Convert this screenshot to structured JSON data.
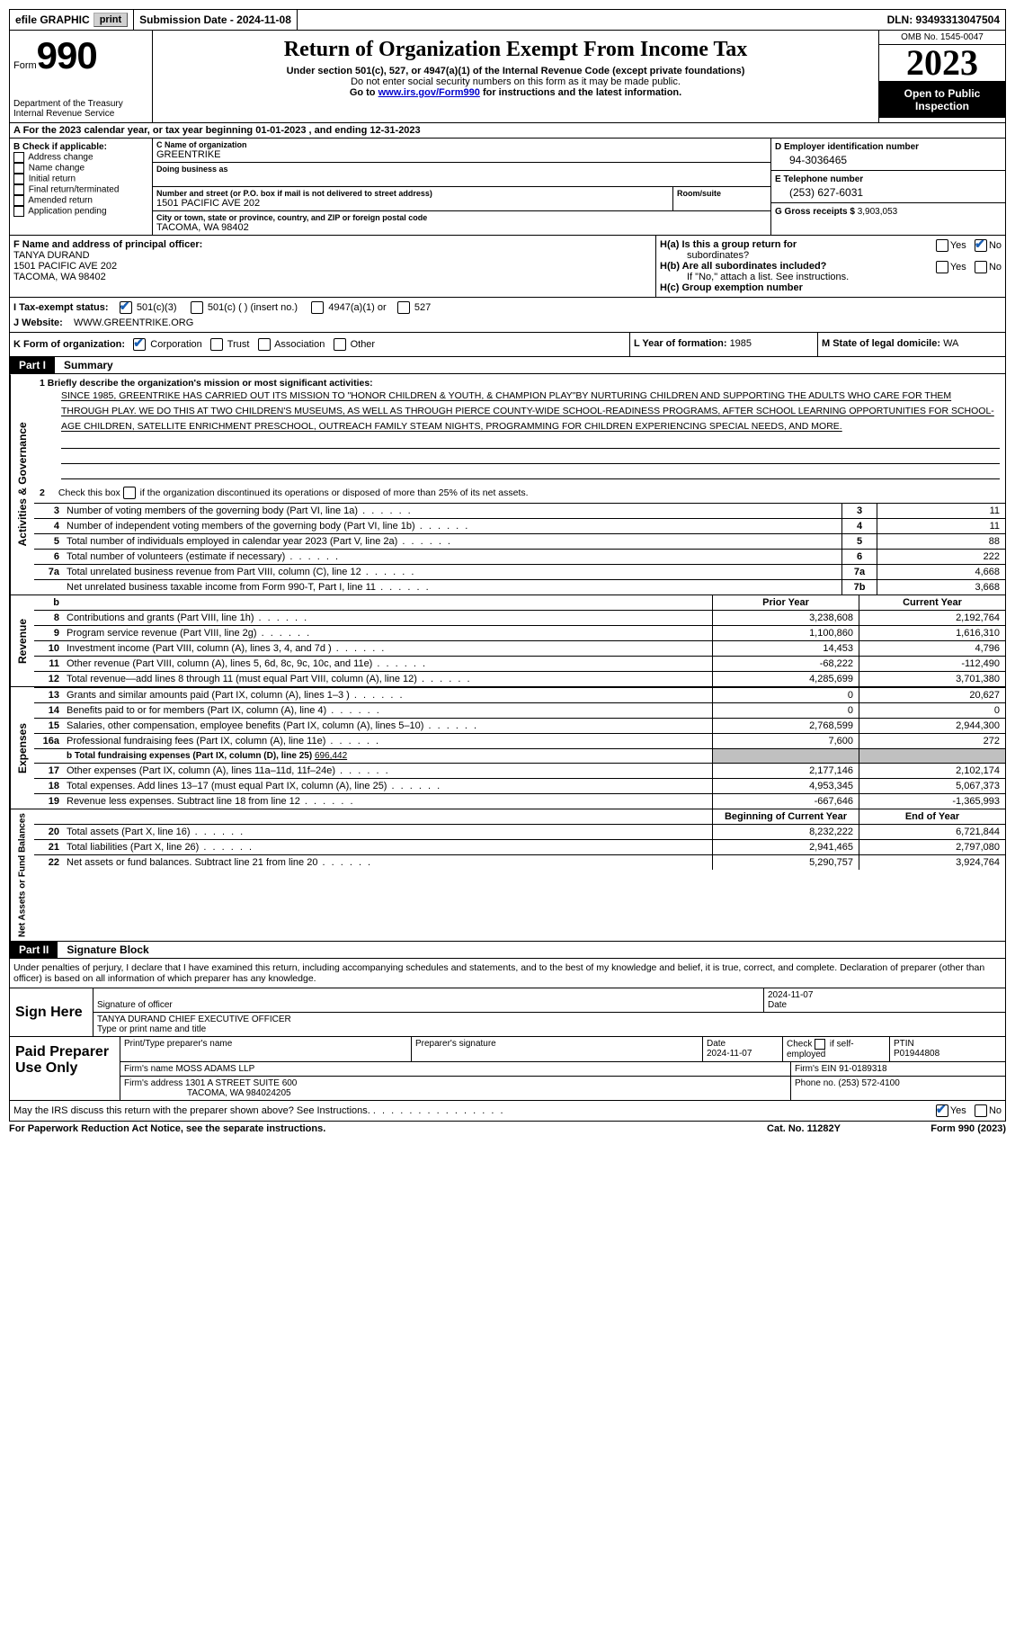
{
  "colors": {
    "background": "#ffffff",
    "text": "#000000",
    "header_black": "#000000",
    "check_blue": "#1a5fb4",
    "shaded_gray": "#c0c0c0",
    "button_gray": "#d0d0d0",
    "link_blue": "#0000cc"
  },
  "typography": {
    "base_family": "Arial, Helvetica, sans-serif",
    "serif_family": "Georgia, Times New Roman, serif",
    "base_size_pt": 9,
    "title_size_pt": 18,
    "year_size_pt": 30
  },
  "top_bar": {
    "efile_label": "efile GRAPHIC",
    "print_button": "print",
    "submission_label": "Submission Date - 2024-11-08",
    "dln_label": "DLN: 93493313047504"
  },
  "header": {
    "form_label": "Form",
    "form_number": "990",
    "dept1": "Department of the Treasury",
    "dept2": "Internal Revenue Service",
    "title": "Return of Organization Exempt From Income Tax",
    "sub1": "Under section 501(c), 527, or 4947(a)(1) of the Internal Revenue Code (except private foundations)",
    "sub2": "Do not enter social security numbers on this form as it may be made public.",
    "sub3_pre": "Go to ",
    "sub3_link": "www.irs.gov/Form990",
    "sub3_post": " for instructions and the latest information.",
    "omb": "OMB No. 1545-0047",
    "year": "2023",
    "inspection1": "Open to Public",
    "inspection2": "Inspection"
  },
  "section_a": {
    "label": "A For the 2023 calendar year, or tax year beginning ",
    "begin": "01-01-2023",
    "mid": "    , and ending ",
    "end": "12-31-2023"
  },
  "section_b": {
    "title": "B Check if applicable:",
    "items": [
      "Address change",
      "Name change",
      "Initial return",
      "Final return/terminated",
      "Amended return",
      "Application pending"
    ]
  },
  "section_c": {
    "name_label": "C Name of organization",
    "name": "GREENTRIKE",
    "dba_label": "Doing business as",
    "street_label": "Number and street (or P.O. box if mail is not delivered to street address)",
    "street": "1501 PACIFIC AVE 202",
    "room_label": "Room/suite",
    "city_label": "City or town, state or province, country, and ZIP or foreign postal code",
    "city": "TACOMA, WA  98402"
  },
  "section_d": {
    "ein_label": "D Employer identification number",
    "ein": "94-3036465",
    "phone_label": "E Telephone number",
    "phone": "(253) 627-6031",
    "gross_label": "G Gross receipts $ ",
    "gross": "3,903,053"
  },
  "section_f": {
    "label": "F  Name and address of principal officer:",
    "name": "TANYA DURAND",
    "addr1": "1501 PACIFIC AVE 202",
    "addr2": "TACOMA, WA  98402"
  },
  "section_h": {
    "a_label": "H(a)  Is this a group return for",
    "a_sub": "subordinates?",
    "b_label": "H(b)  Are all subordinates included?",
    "b_sub": "If \"No,\" attach a list. See instructions.",
    "c_label": "H(c)  Group exemption number  "
  },
  "section_i": {
    "label": "I    Tax-exempt status:",
    "opt1": "501(c)(3)",
    "opt2": "501(c) (  ) (insert no.)",
    "opt3": "4947(a)(1) or",
    "opt4": "527"
  },
  "section_j": {
    "label": "J   Website: ",
    "value": "WWW.GREENTRIKE.ORG"
  },
  "section_k": {
    "label": "K Form of organization:",
    "opts": [
      "Corporation",
      "Trust",
      "Association",
      "Other"
    ]
  },
  "section_l": {
    "label": "L Year of formation: ",
    "value": "1985"
  },
  "section_m": {
    "label": "M State of legal domicile: ",
    "value": "WA"
  },
  "yes": "Yes",
  "no": "No",
  "part1": {
    "tab": "Part I",
    "title": "Summary",
    "section_activities": "Activities & Governance",
    "section_revenue": "Revenue",
    "section_expenses": "Expenses",
    "section_netassets": "Net Assets or Fund Balances",
    "line1_label": "1   Briefly describe the organization's mission or most significant activities:",
    "line1_text": "SINCE 1985, GREENTRIKE HAS CARRIED OUT ITS MISSION TO \"HONOR CHILDREN & YOUTH, & CHAMPION PLAY\"BY NURTURING CHILDREN AND SUPPORTING THE ADULTS WHO CARE FOR THEM THROUGH PLAY. WE DO THIS AT TWO CHILDREN'S MUSEUMS, AS WELL AS THROUGH PIERCE COUNTY-WIDE SCHOOL-READINESS PROGRAMS, AFTER SCHOOL LEARNING OPPORTUNITIES FOR SCHOOL-AGE CHILDREN, SATELLITE ENRICHMENT PRESCHOOL, OUTREACH FAMILY STEAM NIGHTS, PROGRAMMING FOR CHILDREN EXPERIENCING SPECIAL NEEDS, AND MORE.",
    "line2": "Check this box       if the organization discontinued its operations or disposed of more than 25% of its net assets.",
    "lines_gov": [
      {
        "n": "3",
        "d": "Number of voting members of the governing body (Part VI, line 1a)",
        "box": "3",
        "v": "11"
      },
      {
        "n": "4",
        "d": "Number of independent voting members of the governing body (Part VI, line 1b)",
        "box": "4",
        "v": "11"
      },
      {
        "n": "5",
        "d": "Total number of individuals employed in calendar year 2023 (Part V, line 2a)",
        "box": "5",
        "v": "88"
      },
      {
        "n": "6",
        "d": "Total number of volunteers (estimate if necessary)",
        "box": "6",
        "v": "222"
      },
      {
        "n": "7a",
        "d": "Total unrelated business revenue from Part VIII, column (C), line 12",
        "box": "7a",
        "v": "4,668"
      },
      {
        "n": "",
        "d": "Net unrelated business taxable income from Form 990-T, Part I, line 11",
        "box": "7b",
        "v": "3,668"
      }
    ],
    "header_b": "b",
    "prior_year": "Prior Year",
    "current_year": "Current Year",
    "lines_rev": [
      {
        "n": "8",
        "d": "Contributions and grants (Part VIII, line 1h)",
        "py": "3,238,608",
        "cy": "2,192,764"
      },
      {
        "n": "9",
        "d": "Program service revenue (Part VIII, line 2g)",
        "py": "1,100,860",
        "cy": "1,616,310"
      },
      {
        "n": "10",
        "d": "Investment income (Part VIII, column (A), lines 3, 4, and 7d )",
        "py": "14,453",
        "cy": "4,796"
      },
      {
        "n": "11",
        "d": "Other revenue (Part VIII, column (A), lines 5, 6d, 8c, 9c, 10c, and 11e)",
        "py": "-68,222",
        "cy": "-112,490"
      },
      {
        "n": "12",
        "d": "Total revenue—add lines 8 through 11 (must equal Part VIII, column (A), line 12)",
        "py": "4,285,699",
        "cy": "3,701,380"
      }
    ],
    "lines_exp": [
      {
        "n": "13",
        "d": "Grants and similar amounts paid (Part IX, column (A), lines 1–3 )",
        "py": "0",
        "cy": "20,627"
      },
      {
        "n": "14",
        "d": "Benefits paid to or for members (Part IX, column (A), line 4)",
        "py": "0",
        "cy": "0"
      },
      {
        "n": "15",
        "d": "Salaries, other compensation, employee benefits (Part IX, column (A), lines 5–10)",
        "py": "2,768,599",
        "cy": "2,944,300"
      },
      {
        "n": "16a",
        "d": "Professional fundraising fees (Part IX, column (A), line 11e)",
        "py": "7,600",
        "cy": "272"
      }
    ],
    "line16b_pre": "b   Total fundraising expenses (Part IX, column (D), line 25) ",
    "line16b_val": "696,442",
    "lines_exp2": [
      {
        "n": "17",
        "d": "Other expenses (Part IX, column (A), lines 11a–11d, 11f–24e)",
        "py": "2,177,146",
        "cy": "2,102,174"
      },
      {
        "n": "18",
        "d": "Total expenses. Add lines 13–17 (must equal Part IX, column (A), line 25)",
        "py": "4,953,345",
        "cy": "5,067,373"
      },
      {
        "n": "19",
        "d": "Revenue less expenses. Subtract line 18 from line 12",
        "py": "-667,646",
        "cy": "-1,365,993"
      }
    ],
    "begin_year": "Beginning of Current Year",
    "end_year": "End of Year",
    "lines_net": [
      {
        "n": "20",
        "d": "Total assets (Part X, line 16)",
        "py": "8,232,222",
        "cy": "6,721,844"
      },
      {
        "n": "21",
        "d": "Total liabilities (Part X, line 26)",
        "py": "2,941,465",
        "cy": "2,797,080"
      },
      {
        "n": "22",
        "d": "Net assets or fund balances. Subtract line 21 from line 20",
        "py": "5,290,757",
        "cy": "3,924,764"
      }
    ]
  },
  "part2": {
    "tab": "Part II",
    "title": "Signature Block",
    "penalties": "Under penalties of perjury, I declare that I have examined this return, including accompanying schedules and statements, and to the best of my knowledge and belief, it is true, correct, and complete. Declaration of preparer (other than officer) is based on all information of which preparer has any knowledge.",
    "sign_here": "Sign Here",
    "sig_date": "2024-11-07",
    "sig_label": "Signature of officer",
    "date_label": "Date",
    "officer": "TANYA DURAND  CHIEF EXECUTIVE OFFICER",
    "officer_label": "Type or print name and title",
    "paid_prep": "Paid Preparer Use Only",
    "prep_name_label": "Print/Type preparer's name",
    "prep_sig_label": "Preparer's signature",
    "prep_date_label": "Date",
    "prep_date": "2024-11-07",
    "prep_check_label": "Check        if self-employed",
    "ptin_label": "PTIN",
    "ptin": "P01944808",
    "firm_name_label": "Firm's name     ",
    "firm_name": "MOSS ADAMS LLP",
    "firm_ein_label": "Firm's EIN  ",
    "firm_ein": "91-0189318",
    "firm_addr_label": "Firm's address ",
    "firm_addr1": "1301 A STREET SUITE 600",
    "firm_addr2": "TACOMA, WA  984024205",
    "firm_phone_label": "Phone no. ",
    "firm_phone": "(253) 572-4100",
    "discuss": "May the IRS discuss this return with the preparer shown above? See Instructions."
  },
  "footer": {
    "left": "For Paperwork Reduction Act Notice, see the separate instructions.",
    "mid": "Cat. No. 11282Y",
    "right": "Form 990 (2023)"
  }
}
